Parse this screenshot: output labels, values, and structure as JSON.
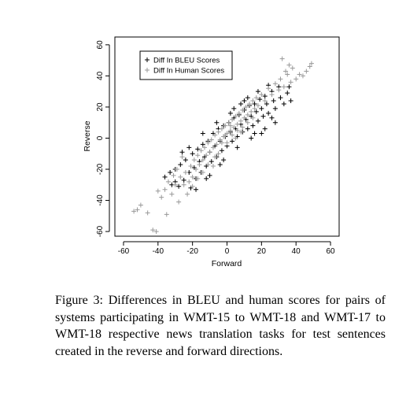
{
  "chart_data": {
    "type": "scatter",
    "title": "",
    "xlabel": "Forward",
    "ylabel": "Reverse",
    "xlim": [
      -65,
      65
    ],
    "ylim": [
      -63,
      65
    ],
    "xticks": [
      -60,
      -40,
      -20,
      0,
      20,
      40,
      60
    ],
    "yticks": [
      -60,
      -40,
      -20,
      0,
      20,
      40,
      60
    ],
    "xtick_labels": [
      "-60",
      "-40",
      "-20",
      "0",
      "20",
      "40",
      "60"
    ],
    "ytick_labels": [
      "-60",
      "-40",
      "-20",
      "0",
      "20",
      "40",
      "60"
    ],
    "grid": false,
    "legend_position": "top-left",
    "series": [
      {
        "name": "Diff In BLEU Scores",
        "color": "#000000",
        "marker": "plus",
        "points": [
          [
            -36,
            -25
          ],
          [
            -33,
            -22
          ],
          [
            -32,
            -30
          ],
          [
            -30,
            -20
          ],
          [
            -28,
            -31
          ],
          [
            -27,
            -17
          ],
          [
            -25,
            -27
          ],
          [
            -24,
            -14
          ],
          [
            -22,
            -22
          ],
          [
            -21,
            -32
          ],
          [
            -20,
            -10
          ],
          [
            -19,
            -19
          ],
          [
            -18,
            -26
          ],
          [
            -17,
            -7
          ],
          [
            -16,
            -15
          ],
          [
            -15,
            -22
          ],
          [
            -14,
            -4
          ],
          [
            -13,
            -12
          ],
          [
            -12,
            -18
          ],
          [
            -11,
            -2
          ],
          [
            -10,
            -9
          ],
          [
            -9,
            -15
          ],
          [
            -8,
            3
          ],
          [
            -7,
            -5
          ],
          [
            -6,
            -12
          ],
          [
            -5,
            6
          ],
          [
            -4,
            -2
          ],
          [
            -3,
            -8
          ],
          [
            -2,
            8
          ],
          [
            -1,
            1
          ],
          [
            0,
            -5
          ],
          [
            1,
            10
          ],
          [
            2,
            4
          ],
          [
            3,
            -2
          ],
          [
            4,
            13
          ],
          [
            5,
            6
          ],
          [
            6,
            1
          ],
          [
            7,
            15
          ],
          [
            8,
            9
          ],
          [
            9,
            4
          ],
          [
            10,
            18
          ],
          [
            11,
            12
          ],
          [
            12,
            6
          ],
          [
            13,
            21
          ],
          [
            14,
            14
          ],
          [
            15,
            8
          ],
          [
            16,
            22
          ],
          [
            17,
            17
          ],
          [
            18,
            11
          ],
          [
            19,
            25
          ],
          [
            20,
            19
          ],
          [
            21,
            14
          ],
          [
            22,
            27
          ],
          [
            23,
            22
          ],
          [
            24,
            16
          ],
          [
            26,
            30
          ],
          [
            27,
            24
          ],
          [
            28,
            19
          ],
          [
            30,
            33
          ],
          [
            31,
            26
          ],
          [
            33,
            22
          ],
          [
            35,
            29
          ],
          [
            36,
            33
          ],
          [
            37,
            24
          ],
          [
            -22,
            -6
          ],
          [
            -18,
            -33
          ],
          [
            -14,
            3
          ],
          [
            -10,
            -24
          ],
          [
            -6,
            10
          ],
          [
            -2,
            -14
          ],
          [
            2,
            16
          ],
          [
            6,
            -6
          ],
          [
            10,
            24
          ],
          [
            14,
            0
          ],
          [
            18,
            30
          ],
          [
            22,
            6
          ],
          [
            26,
            13
          ],
          [
            -26,
            -9
          ],
          [
            -30,
            -28
          ],
          [
            12,
            26
          ],
          [
            16,
            3
          ],
          [
            -12,
            -26
          ],
          [
            8,
            22
          ],
          [
            -4,
            -17
          ],
          [
            4,
            19
          ],
          [
            20,
            3
          ],
          [
            24,
            34
          ],
          [
            28,
            10
          ]
        ]
      },
      {
        "name": "Diff In Human Scores",
        "color": "#999999",
        "marker": "plus",
        "points": [
          [
            -54,
            -47
          ],
          [
            -52,
            -46
          ],
          [
            -50,
            -43
          ],
          [
            -46,
            -48
          ],
          [
            -43,
            -59
          ],
          [
            -41,
            -60
          ],
          [
            -40,
            -34
          ],
          [
            -38,
            -38
          ],
          [
            -36,
            -33
          ],
          [
            -35,
            -49
          ],
          [
            -34,
            -28
          ],
          [
            -32,
            -36
          ],
          [
            -30,
            -30
          ],
          [
            -28,
            -41
          ],
          [
            -27,
            -25
          ],
          [
            -25,
            -30
          ],
          [
            -24,
            -22
          ],
          [
            -22,
            -28
          ],
          [
            -21,
            -18
          ],
          [
            -20,
            -25
          ],
          [
            -19,
            -14
          ],
          [
            -18,
            -20
          ],
          [
            -17,
            -11
          ],
          [
            -16,
            -17
          ],
          [
            -15,
            -8
          ],
          [
            -14,
            -14
          ],
          [
            -13,
            -6
          ],
          [
            -12,
            -11
          ],
          [
            -11,
            -3
          ],
          [
            -10,
            -9
          ],
          [
            -9,
            -1
          ],
          [
            -8,
            -6
          ],
          [
            -7,
            2
          ],
          [
            -6,
            -4
          ],
          [
            -5,
            4
          ],
          [
            -4,
            -1
          ],
          [
            -3,
            6
          ],
          [
            -2,
            1
          ],
          [
            -1,
            8
          ],
          [
            0,
            3
          ],
          [
            1,
            10
          ],
          [
            2,
            5
          ],
          [
            3,
            12
          ],
          [
            4,
            7
          ],
          [
            5,
            14
          ],
          [
            6,
            9
          ],
          [
            7,
            16
          ],
          [
            8,
            11
          ],
          [
            9,
            18
          ],
          [
            10,
            13
          ],
          [
            11,
            20
          ],
          [
            12,
            15
          ],
          [
            13,
            22
          ],
          [
            14,
            17
          ],
          [
            15,
            24
          ],
          [
            16,
            19
          ],
          [
            17,
            26
          ],
          [
            18,
            21
          ],
          [
            20,
            28
          ],
          [
            22,
            24
          ],
          [
            24,
            32
          ],
          [
            26,
            28
          ],
          [
            28,
            35
          ],
          [
            30,
            31
          ],
          [
            31,
            38
          ],
          [
            33,
            33
          ],
          [
            35,
            41
          ],
          [
            37,
            36
          ],
          [
            38,
            45
          ],
          [
            40,
            38
          ],
          [
            42,
            41
          ],
          [
            44,
            40
          ],
          [
            46,
            43
          ],
          [
            48,
            46
          ],
          [
            49,
            48
          ],
          [
            32,
            51
          ],
          [
            34,
            43
          ],
          [
            36,
            47
          ],
          [
            -26,
            -12
          ],
          [
            -29,
            -20
          ],
          [
            -31,
            -24
          ],
          [
            -23,
            -36
          ],
          [
            -8,
            -18
          ],
          [
            -5,
            -10
          ],
          [
            5,
            0
          ],
          [
            8,
            4
          ],
          [
            -3,
            -3
          ],
          [
            0,
            -3
          ],
          [
            3,
            2
          ],
          [
            6,
            5
          ],
          [
            -1,
            2
          ],
          [
            2,
            8
          ],
          [
            9,
            7
          ],
          [
            12,
            10
          ],
          [
            15,
            13
          ],
          [
            -11,
            -17
          ],
          [
            -7,
            -12
          ],
          [
            -14,
            -22
          ],
          [
            -17,
            -26
          ],
          [
            -20,
            -31
          ]
        ]
      }
    ]
  },
  "caption": "Figure 3: Differences in BLEU and human scores for pairs of systems participating in WMT-15 to WMT-18 and WMT-17 to WMT-18 respective news translation tasks for test sentences created in the reverse and forward directions."
}
